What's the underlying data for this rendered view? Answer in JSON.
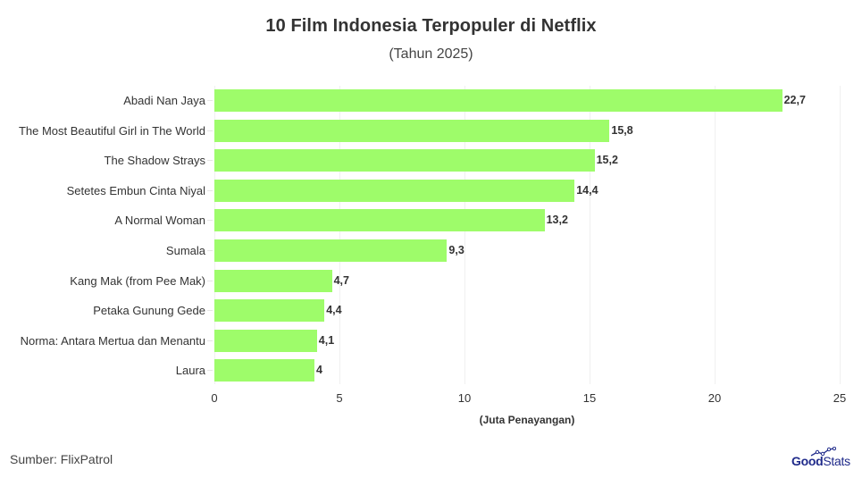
{
  "header": {
    "title": "10 Film Indonesia Terpopuler di Netflix",
    "subtitle": "(Tahun 2025)"
  },
  "footer": {
    "source": "Sumber: FlixPatrol",
    "logo_good": "Good",
    "logo_stats": "Stats"
  },
  "colors": {
    "bar": "#9efc6a",
    "text": "#333333",
    "logo": "#1f2a8a"
  },
  "chart_data": {
    "type": "bar",
    "orientation": "horizontal",
    "title": "10 Film Indonesia Terpopuler di Netflix",
    "subtitle": "(Tahun 2025)",
    "categories": [
      "Abadi Nan Jaya",
      "The Most Beautiful Girl in The World",
      "The Shadow Strays",
      "Setetes Embun Cinta Niyal",
      "A Normal Woman",
      "Sumala",
      "Kang Mak (from Pee Mak)",
      "Petaka Gunung Gede",
      "Norma: Antara Mertua dan Menantu",
      "Laura"
    ],
    "values": [
      22.7,
      15.8,
      15.2,
      14.4,
      13.2,
      9.3,
      4.7,
      4.4,
      4.1,
      4.0
    ],
    "value_labels": [
      "22,7",
      "15,8",
      "15,2",
      "14,4",
      "13,2",
      "9,3",
      "4,7",
      "4,4",
      "4,1",
      "4"
    ],
    "xlabel": "(Juta Penayangan)",
    "ylabel": "",
    "xlim": [
      0,
      25
    ],
    "x_ticks": [
      "0",
      "5",
      "10",
      "15",
      "20",
      "25"
    ],
    "x_tick_values": [
      0,
      5,
      10,
      15,
      20,
      25
    ],
    "grid": "vertical, light",
    "legend": "none",
    "source": "Sumber: FlixPatrol"
  }
}
